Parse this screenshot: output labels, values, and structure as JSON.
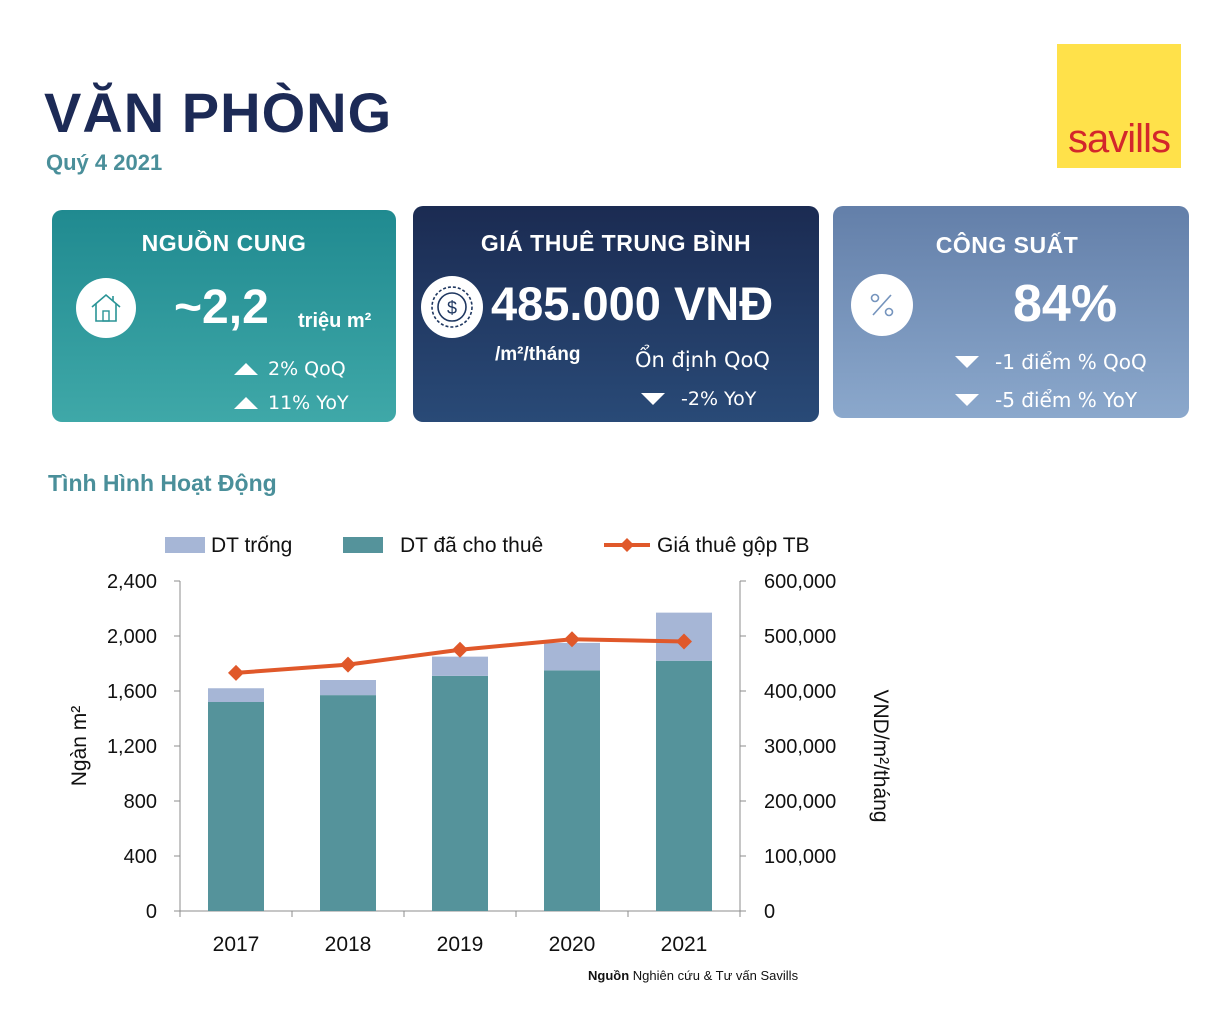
{
  "header": {
    "title": "VĂN PHÒNG",
    "subtitle": "Quý 4 2021"
  },
  "logo": {
    "text": "savills",
    "bg_color": "#ffe14a",
    "text_color": "#d3272b"
  },
  "cards": {
    "supply": {
      "heading": "NGUỒN CUNG",
      "icon": "house-icon",
      "value": "~2,2",
      "unit": "triệu m²",
      "changes": [
        {
          "direction": "up",
          "text": "2% QoQ"
        },
        {
          "direction": "up",
          "text": "11% YoY"
        }
      ],
      "color": "#2a9496"
    },
    "rent": {
      "heading": "GIÁ THUÊ TRUNG BÌNH",
      "icon": "dollar-coin-icon",
      "value": "485.000 VNĐ",
      "unit": "/m²/tháng",
      "status": "Ổn định QoQ",
      "changes": [
        {
          "direction": "down",
          "text": "-2% YoY"
        }
      ],
      "color": "#1f3760"
    },
    "occupancy": {
      "heading": "CÔNG SUẤT",
      "icon": "percent-icon",
      "value": "84%",
      "changes": [
        {
          "direction": "down",
          "text": "-1 điểm % QoQ"
        },
        {
          "direction": "down",
          "text": "-5 điểm % YoY"
        }
      ],
      "color": "#7594bd"
    }
  },
  "section": {
    "title": "Tình Hình Hoạt Động"
  },
  "chart_data": {
    "type": "bar",
    "categories": [
      "2017",
      "2018",
      "2019",
      "2020",
      "2021"
    ],
    "series": [
      {
        "name": "DT trống",
        "kind": "stacked-bar",
        "color": "#a6b6d6",
        "values": [
          100,
          110,
          140,
          200,
          350
        ]
      },
      {
        "name": "DT đã cho thuê",
        "kind": "stacked-bar",
        "color": "#55939b",
        "values": [
          1520,
          1570,
          1710,
          1750,
          1820
        ]
      },
      {
        "name": "Giá thuê gộp TB",
        "kind": "line",
        "axis": "right",
        "color": "#e0582a",
        "values": [
          433000,
          448000,
          475000,
          494000,
          490000
        ]
      }
    ],
    "ylabel": "Ngàn m²",
    "ylabel_right": "VND/m²/tháng",
    "ylim": [
      0,
      2400
    ],
    "ylim_right": [
      0,
      600000
    ],
    "yticks": [
      "0",
      "400",
      "800",
      "1,200",
      "1,600",
      "2,000",
      "2,400"
    ],
    "yticks_right": [
      "0",
      "100,000",
      "200,000",
      "300,000",
      "400,000",
      "500,000",
      "600,000"
    ],
    "legend_position": "top",
    "grid": true
  },
  "source": {
    "label": "Nguồn",
    "text": "Nghiên cứu & Tư vấn Savills"
  }
}
